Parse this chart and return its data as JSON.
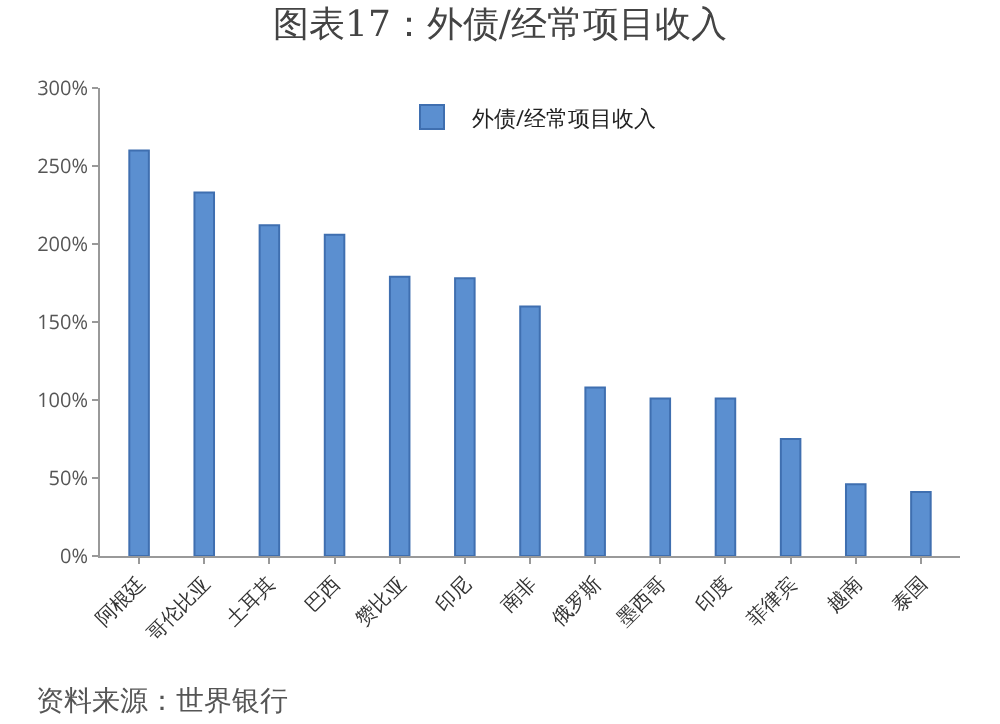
{
  "chart_data": {
    "type": "bar",
    "title": "图表17：外债/经常项目收入",
    "categories": [
      "阿根廷",
      "哥伦比亚",
      "土耳其",
      "巴西",
      "赞比亚",
      "印尼",
      "南非",
      "俄罗斯",
      "墨西哥",
      "印度",
      "菲律宾",
      "越南",
      "泰国"
    ],
    "series": [
      {
        "name": "外债/经常项目收入",
        "color": "#5b8fd0",
        "values": [
          260,
          233,
          212,
          206,
          179,
          178,
          160,
          108,
          101,
          101,
          75,
          46,
          41
        ]
      }
    ],
    "ylim": [
      0,
      300
    ],
    "yticks": [
      {
        "value": 0,
        "label": "0%"
      },
      {
        "value": 50,
        "label": "50%"
      },
      {
        "value": 100,
        "label": "100%"
      },
      {
        "value": 150,
        "label": "150%"
      },
      {
        "value": 200,
        "label": "200%"
      },
      {
        "value": 250,
        "label": "250%"
      },
      {
        "value": 300,
        "label": "300%"
      }
    ],
    "grid": false,
    "legend": "top",
    "annotations": [
      "资料来源：世界银行"
    ]
  }
}
